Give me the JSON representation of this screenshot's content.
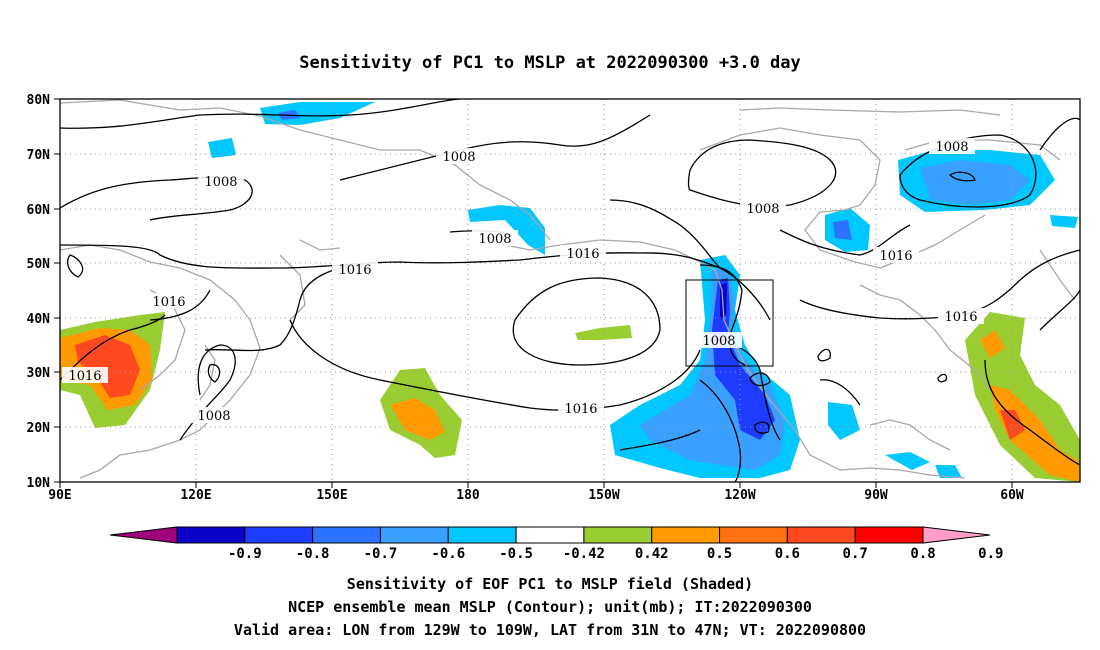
{
  "title": "Sensitivity of PC1 to MSLP at 2022090300 +3.0 day",
  "lat_ticks": [
    "80N",
    "70N",
    "60N",
    "50N",
    "40N",
    "30N",
    "20N",
    "10N"
  ],
  "lon_ticks": [
    "90E",
    "120E",
    "150E",
    "180",
    "150W",
    "120W",
    "90W",
    "60W"
  ],
  "contour_labels": [
    {
      "id": "c1",
      "text": "1008"
    },
    {
      "id": "c2",
      "text": "1008"
    },
    {
      "id": "c3",
      "text": "1008"
    },
    {
      "id": "c4",
      "text": "1008"
    },
    {
      "id": "c5",
      "text": "1008"
    },
    {
      "id": "c6",
      "text": "1016"
    },
    {
      "id": "c7",
      "text": "1016"
    },
    {
      "id": "c8",
      "text": "1016"
    },
    {
      "id": "c9",
      "text": "1016"
    },
    {
      "id": "c10",
      "text": "1016"
    },
    {
      "id": "c11",
      "text": "1016"
    },
    {
      "id": "c12",
      "text": "1008"
    },
    {
      "id": "c13",
      "text": "1008"
    }
  ],
  "colorbar": {
    "labels": [
      "-0.9",
      "-0.8",
      "-0.7",
      "-0.6",
      "-0.5",
      "-0.42",
      "0.42",
      "0.5",
      "0.6",
      "0.7",
      "0.8",
      "0.9"
    ],
    "colors": [
      "#a0007a",
      "#0a00c8",
      "#1e3cff",
      "#2b73ff",
      "#3aa0ff",
      "#00c8ff",
      "#ffffff",
      "#9acd32",
      "#ff9a00",
      "#ff7010",
      "#ff4a20",
      "#ff0000",
      "#ff9ec8"
    ]
  },
  "caption": {
    "line1": "Sensitivity of EOF PC1 to MSLP field (Shaded)",
    "line2": "NCEP ensemble mean MSLP (Contour); unit(mb); IT:2022090300",
    "line3": "Valid area: LON from 129W to 109W, LAT from 31N to 47N; VT: 2022090800"
  }
}
